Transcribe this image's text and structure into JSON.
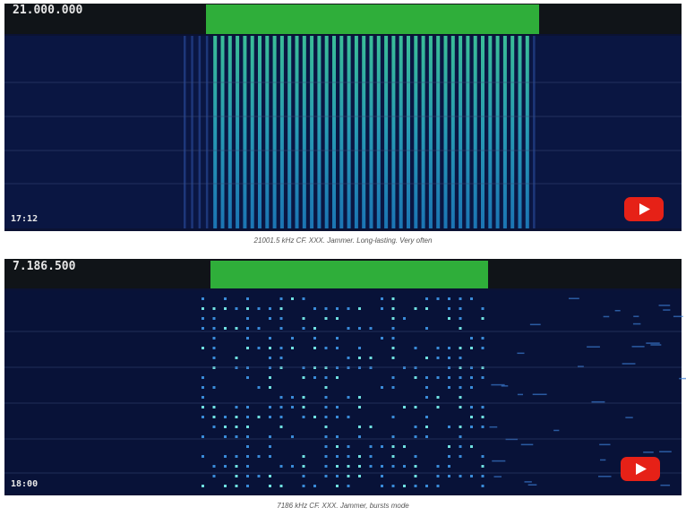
{
  "panels": [
    {
      "frequency": "21.000.000",
      "time": "17:12",
      "caption": "21001.5 kHz CF. XXX. Jammer. Long-lasting. Very often"
    },
    {
      "frequency": "7.186.500",
      "time": "18:00",
      "caption": "7186 kHz CF. XXX. Jammer, bursts mode"
    }
  ]
}
